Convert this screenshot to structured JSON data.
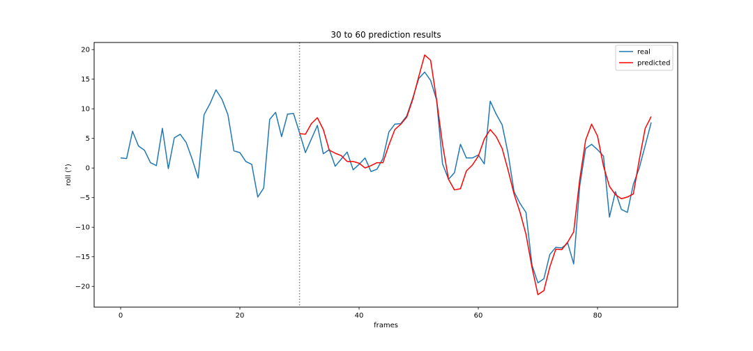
{
  "chart_data": {
    "type": "line",
    "title": "30 to 60 prediction results",
    "xlabel": "frames",
    "ylabel": "roll (°)",
    "xlim": [
      -4.45,
      93.45
    ],
    "ylim": [
      -23.5,
      21.2
    ],
    "xticks": [
      0,
      20,
      40,
      60,
      80
    ],
    "yticks": [
      -20,
      -15,
      -10,
      -5,
      0,
      5,
      10,
      15,
      20
    ],
    "grid": false,
    "legend": "top-right",
    "vline": {
      "x": 30,
      "style": "dotted",
      "color": "#808080"
    },
    "series": [
      {
        "name": "real",
        "color": "#1f77b4",
        "x": [
          0,
          1,
          2,
          3,
          4,
          5,
          6,
          7,
          8,
          9,
          10,
          11,
          12,
          13,
          14,
          15,
          16,
          17,
          18,
          19,
          20,
          21,
          22,
          23,
          24,
          25,
          26,
          27,
          28,
          29,
          30,
          31,
          32,
          33,
          34,
          35,
          36,
          37,
          38,
          39,
          40,
          41,
          42,
          43,
          44,
          45,
          46,
          47,
          48,
          49,
          50,
          51,
          52,
          53,
          54,
          55,
          56,
          57,
          58,
          59,
          60,
          61,
          62,
          63,
          64,
          65,
          66,
          67,
          68,
          69,
          70,
          71,
          72,
          73,
          74,
          75,
          76,
          77,
          78,
          79,
          80,
          81,
          82,
          83,
          84,
          85,
          86,
          87,
          88,
          89
        ],
        "values": [
          1.7,
          1.6,
          6.2,
          3.7,
          3.0,
          0.9,
          0.4,
          6.7,
          -0.1,
          5.1,
          5.7,
          4.3,
          1.5,
          -1.7,
          9.0,
          10.9,
          13.2,
          11.6,
          9.0,
          2.9,
          2.6,
          1.1,
          0.6,
          -4.9,
          -3.4,
          8.2,
          9.4,
          5.3,
          9.1,
          9.2,
          6.0,
          2.6,
          4.9,
          7.2,
          2.4,
          3.1,
          0.3,
          1.5,
          2.7,
          -0.3,
          0.6,
          1.7,
          -0.6,
          -0.2,
          1.6,
          6.1,
          7.4,
          7.5,
          8.8,
          11.8,
          15.1,
          16.2,
          14.8,
          11.5,
          0.7,
          -1.9,
          -0.8,
          4.0,
          1.7,
          1.7,
          2.2,
          0.7,
          11.3,
          9.1,
          7.3,
          2.4,
          -4.0,
          -6.0,
          -7.5,
          -16.4,
          -19.4,
          -18.7,
          -14.6,
          -13.4,
          -13.5,
          -12.7,
          -16.2,
          -3.1,
          3.3,
          4.0,
          3.1,
          2.0,
          -8.3,
          -4.0,
          -7.0,
          -7.5,
          -2.8,
          0.0,
          3.8,
          7.7
        ]
      },
      {
        "name": "predicted",
        "color": "#ff0000",
        "x": [
          30,
          31,
          32,
          33,
          34,
          35,
          36,
          37,
          38,
          39,
          40,
          41,
          42,
          43,
          44,
          45,
          46,
          47,
          48,
          49,
          50,
          51,
          52,
          53,
          54,
          55,
          56,
          57,
          58,
          59,
          60,
          61,
          62,
          63,
          64,
          65,
          66,
          67,
          68,
          69,
          70,
          71,
          72,
          73,
          74,
          75,
          76,
          77,
          78,
          79,
          80,
          81,
          82,
          83,
          84,
          85,
          86,
          87,
          88,
          89
        ],
        "values": [
          5.8,
          5.7,
          7.5,
          8.5,
          6.5,
          3.0,
          2.5,
          2.1,
          1.1,
          1.1,
          0.8,
          0.0,
          0.4,
          0.9,
          0.9,
          3.9,
          6.5,
          7.4,
          8.6,
          11.6,
          15.4,
          19.1,
          18.2,
          11.5,
          4.0,
          -1.9,
          -3.7,
          -3.5,
          -0.5,
          0.5,
          2.0,
          4.9,
          6.5,
          5.3,
          3.3,
          -0.4,
          -4.4,
          -7.5,
          -11.2,
          -16.8,
          -21.4,
          -20.7,
          -16.7,
          -13.7,
          -13.8,
          -12.5,
          -10.8,
          -2.0,
          4.7,
          7.4,
          5.4,
          0.3,
          -3.1,
          -4.5,
          -5.2,
          -4.9,
          -4.4,
          1.4,
          6.7,
          8.7
        ]
      }
    ]
  }
}
